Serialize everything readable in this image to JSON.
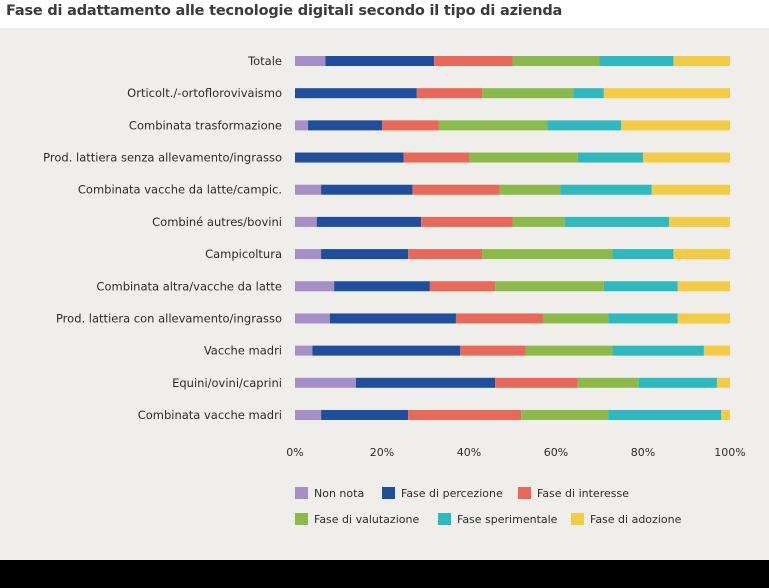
{
  "chart_data": {
    "type": "bar",
    "orientation": "horizontal",
    "stacked": true,
    "normalized": true,
    "title": "Fase di adattamento alle tecnologie digitali secondo il tipo di azienda",
    "categories": [
      "Totale",
      "Orticolt./-ortoflorovivaismo",
      "Combinata trasformazione",
      "Prod. lattiera senza allevamento/ingrasso",
      "Combinata vacche da latte/campic.",
      "Combiné autres/bovini",
      "Campicoltura",
      "Combinata altra/vacche da latte",
      "Prod. lattiera con allevamento/ingrasso",
      "Vacche madri",
      "Equini/ovini/caprini",
      "Combinata vacche madri"
    ],
    "series": [
      {
        "name": "Non nota",
        "color": "#a390c8",
        "values": [
          7,
          0,
          3,
          0,
          6,
          5,
          6,
          9,
          8,
          4,
          14,
          6
        ]
      },
      {
        "name": "Fase di percezione",
        "color": "#1f4f9c",
        "values": [
          25,
          28,
          17,
          25,
          21,
          24,
          20,
          22,
          29,
          34,
          32,
          20
        ]
      },
      {
        "name": "Fase di interesse",
        "color": "#e8685a",
        "values": [
          18,
          15,
          13,
          15,
          20,
          21,
          17,
          15,
          20,
          15,
          19,
          26
        ]
      },
      {
        "name": "Fase di valutazione",
        "color": "#8cba4a",
        "values": [
          20,
          21,
          25,
          25,
          14,
          12,
          30,
          25,
          15,
          20,
          14,
          20
        ]
      },
      {
        "name": "Fase sperimentale",
        "color": "#2eb8c0",
        "values": [
          17,
          7,
          17,
          15,
          21,
          24,
          14,
          17,
          16,
          21,
          18,
          26
        ]
      },
      {
        "name": "Fase di adozione",
        "color": "#f4cb45",
        "values": [
          13,
          29,
          25,
          20,
          18,
          14,
          13,
          12,
          12,
          6,
          3,
          2
        ]
      }
    ],
    "xlim": [
      0,
      100
    ],
    "xticks": [
      "0%",
      "20%",
      "40%",
      "60%",
      "80%",
      "100%"
    ],
    "xlabel": "",
    "ylabel": "",
    "legend_position": "bottom"
  }
}
